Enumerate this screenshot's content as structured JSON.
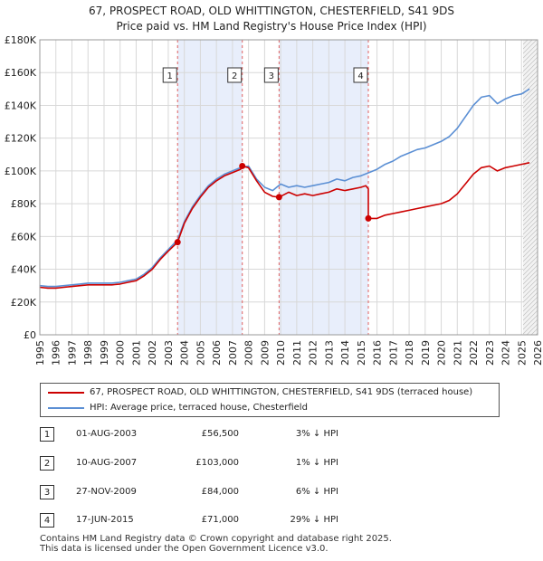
{
  "chart_data": {
    "type": "line",
    "title": "67, PROSPECT ROAD, OLD WHITTINGTON, CHESTERFIELD, S41 9DS",
    "subtitle": "Price paid vs. HM Land Registry's House Price Index (HPI)",
    "xlim": [
      1995.0,
      2026.0
    ],
    "ylim": [
      0,
      180000
    ],
    "y_ticks": [
      0,
      20000,
      40000,
      60000,
      80000,
      100000,
      120000,
      140000,
      160000,
      180000
    ],
    "y_tick_labels": [
      "£0",
      "£20K",
      "£40K",
      "£60K",
      "£80K",
      "£100K",
      "£120K",
      "£140K",
      "£160K",
      "£180K"
    ],
    "x_ticks": [
      1995,
      1996,
      1997,
      1998,
      1999,
      2000,
      2001,
      2002,
      2003,
      2004,
      2005,
      2006,
      2007,
      2008,
      2009,
      2010,
      2011,
      2012,
      2013,
      2014,
      2015,
      2016,
      2017,
      2018,
      2019,
      2020,
      2021,
      2022,
      2023,
      2024,
      2025,
      2026
    ],
    "x_tick_labels": [
      "1995",
      "1996",
      "1997",
      "1998",
      "1999",
      "2000",
      "2001",
      "2002",
      "2003",
      "2004",
      "2005",
      "2006",
      "2007",
      "2008",
      "2009",
      "2010",
      "2011",
      "2012",
      "2013",
      "2014",
      "2015",
      "2016",
      "2017",
      "2018",
      "2019",
      "2020",
      "2021",
      "2022",
      "2023",
      "2024",
      "2025",
      "2026"
    ],
    "grid": true,
    "forecast_start": 2025.1,
    "series": [
      {
        "name": "67, PROSPECT ROAD, OLD WHITTINGTON, CHESTERFIELD, S41 9DS (terraced house)",
        "color": "#cc0000",
        "x": [
          1995.0,
          1995.5,
          1996.0,
          1996.5,
          1997.0,
          1997.5,
          1998.0,
          1998.5,
          1999.0,
          1999.5,
          2000.0,
          2000.5,
          2001.0,
          2001.5,
          2002.0,
          2002.5,
          2003.0,
          2003.58,
          2003.58,
          2004.0,
          2004.5,
          2005.0,
          2005.5,
          2006.0,
          2006.5,
          2007.0,
          2007.5,
          2007.61,
          2007.61,
          2008.0,
          2008.5,
          2009.0,
          2009.5,
          2009.9,
          2009.9,
          2010.5,
          2011.0,
          2011.5,
          2012.0,
          2012.5,
          2013.0,
          2013.5,
          2014.0,
          2014.5,
          2015.0,
          2015.3,
          2015.46,
          2015.46,
          2016.0,
          2016.5,
          2017.0,
          2017.5,
          2018.0,
          2018.5,
          2019.0,
          2019.5,
          2020.0,
          2020.5,
          2021.0,
          2021.5,
          2022.0,
          2022.5,
          2023.0,
          2023.5,
          2024.0,
          2024.5,
          2025.0,
          2025.5
        ],
        "y": [
          29000,
          28500,
          28500,
          29000,
          29500,
          30000,
          30500,
          30500,
          30500,
          30500,
          31000,
          32000,
          33000,
          36000,
          40000,
          46000,
          51000,
          56500,
          56500,
          68000,
          77000,
          84000,
          90000,
          94000,
          97000,
          99000,
          101000,
          103000,
          103000,
          102000,
          94000,
          87000,
          84500,
          84000,
          84000,
          87000,
          85000,
          86000,
          85000,
          86000,
          87000,
          89000,
          88000,
          89000,
          90000,
          91000,
          89000,
          71000,
          71000,
          73000,
          74000,
          75000,
          76000,
          77000,
          78000,
          79000,
          80000,
          82000,
          86000,
          92000,
          98000,
          102000,
          103000,
          100000,
          102000,
          103000,
          104000,
          105000
        ]
      },
      {
        "name": "HPI: Average price, terraced house, Chesterfield",
        "color": "#5b8fd4",
        "x": [
          1995.0,
          1995.5,
          1996.0,
          1996.5,
          1997.0,
          1997.5,
          1998.0,
          1998.5,
          1999.0,
          1999.5,
          2000.0,
          2000.5,
          2001.0,
          2001.5,
          2002.0,
          2002.5,
          2003.0,
          2003.58,
          2004.0,
          2004.5,
          2005.0,
          2005.5,
          2006.0,
          2006.5,
          2007.0,
          2007.5,
          2008.0,
          2008.5,
          2009.0,
          2009.5,
          2010.0,
          2010.5,
          2011.0,
          2011.5,
          2012.0,
          2012.5,
          2013.0,
          2013.5,
          2014.0,
          2014.5,
          2015.0,
          2015.5,
          2016.0,
          2016.5,
          2017.0,
          2017.5,
          2018.0,
          2018.5,
          2019.0,
          2019.5,
          2020.0,
          2020.5,
          2021.0,
          2021.5,
          2022.0,
          2022.5,
          2023.0,
          2023.5,
          2024.0,
          2024.5,
          2025.0,
          2025.5
        ],
        "y": [
          30000,
          29500,
          29500,
          30000,
          30500,
          31000,
          31500,
          31500,
          31500,
          31500,
          32000,
          33000,
          34000,
          37000,
          41000,
          47000,
          52000,
          58000,
          69000,
          78000,
          85000,
          91000,
          95000,
          98000,
          100000,
          102000,
          103000,
          95000,
          90000,
          88000,
          92000,
          90000,
          91000,
          90000,
          91000,
          92000,
          93000,
          95000,
          94000,
          96000,
          97000,
          99000,
          101000,
          104000,
          106000,
          109000,
          111000,
          113000,
          114000,
          116000,
          118000,
          121000,
          126000,
          133000,
          140000,
          145000,
          146000,
          141000,
          144000,
          146000,
          147000,
          150000
        ]
      }
    ],
    "sales": [
      {
        "num": "1",
        "x": 2003.58,
        "y": 56500
      },
      {
        "num": "2",
        "x": 2007.61,
        "y": 103000
      },
      {
        "num": "3",
        "x": 2009.9,
        "y": 84000
      },
      {
        "num": "4",
        "x": 2015.46,
        "y": 71000
      }
    ],
    "annotations": [
      "1",
      "2",
      "3",
      "4"
    ]
  },
  "legend": {
    "red_label": "67, PROSPECT ROAD, OLD WHITTINGTON, CHESTERFIELD, S41 9DS (terraced house)",
    "blue_label": "HPI: Average price, terraced house, Chesterfield"
  },
  "sales_table": [
    {
      "num": "1",
      "date": "01-AUG-2003",
      "price": "£56,500",
      "hpi": "3% ↓ HPI"
    },
    {
      "num": "2",
      "date": "10-AUG-2007",
      "price": "£103,000",
      "hpi": "1% ↓ HPI"
    },
    {
      "num": "3",
      "date": "27-NOV-2009",
      "price": "£84,000",
      "hpi": "6% ↓ HPI"
    },
    {
      "num": "4",
      "date": "17-JUN-2015",
      "price": "£71,000",
      "hpi": "29% ↓ HPI"
    }
  ],
  "footer": {
    "line1": "Contains HM Land Registry data © Crown copyright and database right 2025.",
    "line2": "This data is licensed under the Open Government Licence v3.0."
  }
}
